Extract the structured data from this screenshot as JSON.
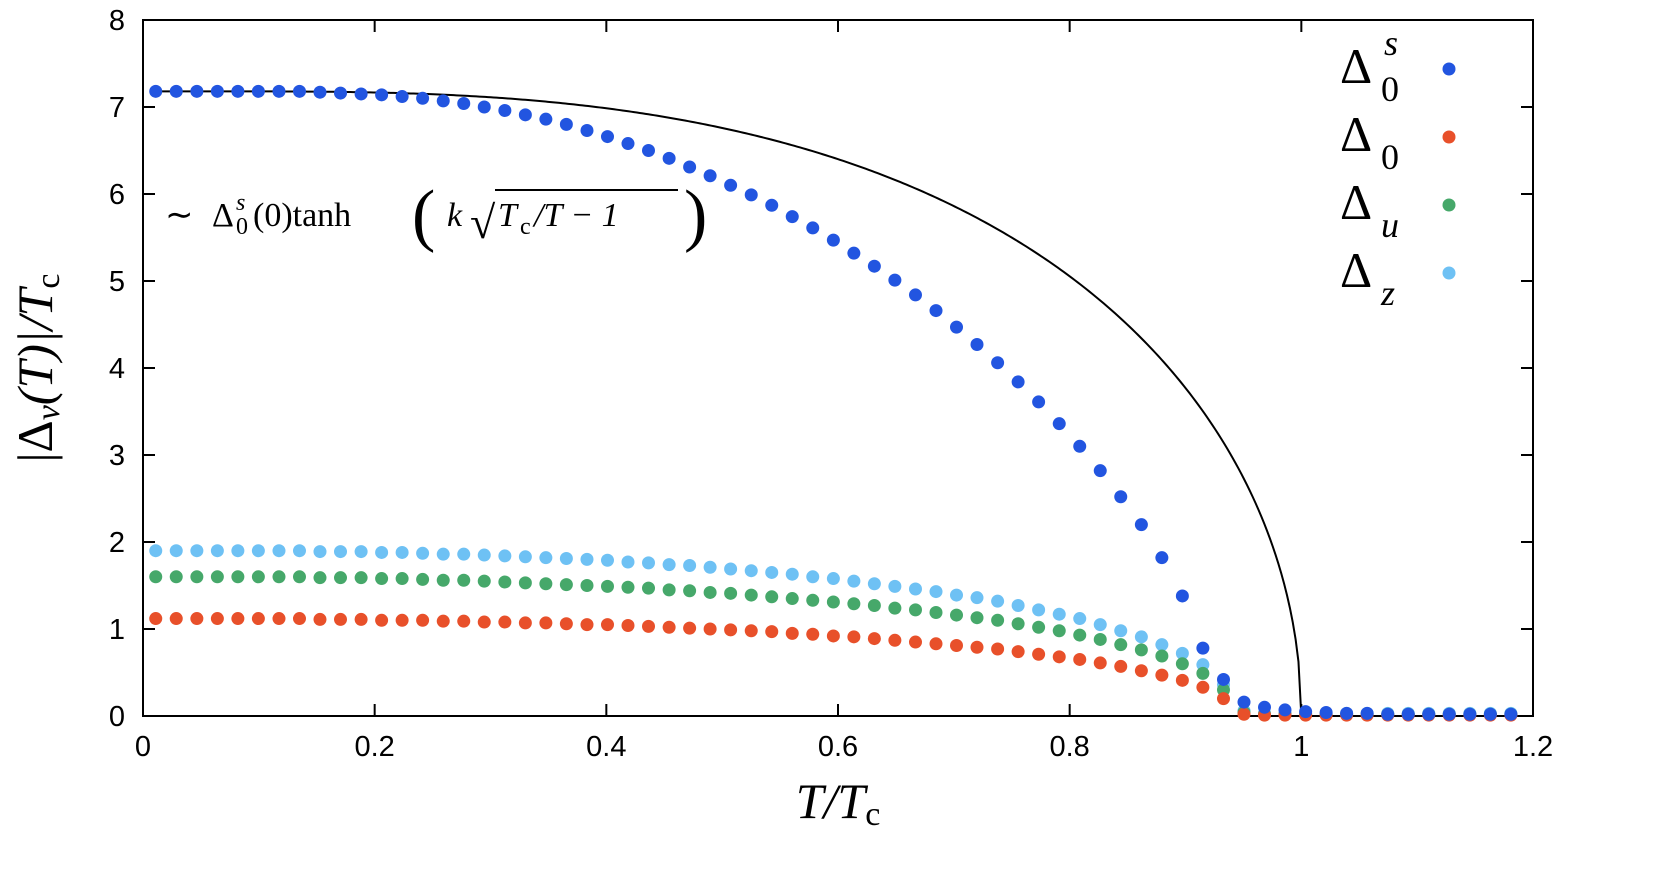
{
  "chart_data": {
    "type": "scatter",
    "title": "",
    "xlim": [
      0,
      1.2
    ],
    "ylim": [
      0,
      8
    ],
    "x_ticks": [
      "0",
      "0.2",
      "0.4",
      "0.6",
      "0.8",
      "1",
      "1.2"
    ],
    "y_ticks": [
      "0",
      "1",
      "2",
      "3",
      "4",
      "5",
      "6",
      "7",
      "8"
    ],
    "xlabel": {
      "base": "T/T",
      "sub": "c"
    },
    "ylabel": {
      "open": "|Δ",
      "sub": "ν",
      "mid": "(T)|/T",
      "sub2": "c"
    },
    "annotation": {
      "tilde": "∼",
      "delta": "Δ",
      "delta_sub": "0",
      "delta_sup": "s",
      "arg": "(0)tanh",
      "lparen": "(",
      "k": "k",
      "radical": "√",
      "tc": "T",
      "tc_sub": "c",
      "ratio": "/T − 1",
      "rparen": ")"
    },
    "fit": {
      "name": "fit",
      "delta0": 7.18,
      "k": 1.75,
      "color": "#000000"
    },
    "x": [
      0.011,
      0.0287,
      0.0465,
      0.0642,
      0.0819,
      0.0996,
      0.1174,
      0.1351,
      0.1528,
      0.1705,
      0.1883,
      0.206,
      0.2237,
      0.2414,
      0.2592,
      0.2769,
      0.2946,
      0.3124,
      0.3301,
      0.3478,
      0.3655,
      0.3833,
      0.401,
      0.4187,
      0.4364,
      0.4542,
      0.4719,
      0.4896,
      0.5073,
      0.5251,
      0.5428,
      0.5605,
      0.5782,
      0.596,
      0.6137,
      0.6314,
      0.6491,
      0.6669,
      0.6846,
      0.7023,
      0.72,
      0.7378,
      0.7555,
      0.7732,
      0.791,
      0.8087,
      0.8264,
      0.8441,
      0.8619,
      0.8796,
      0.8973,
      0.915,
      0.9328,
      0.9505,
      0.9682,
      0.9859,
      1.0037,
      1.0214,
      1.0391,
      1.0568,
      1.0746,
      1.0923,
      1.11,
      1.1277,
      1.1455,
      1.1632,
      1.1809
    ],
    "series": [
      {
        "name": "Δ0s",
        "label": {
          "base": "Δ",
          "sub": "0",
          "sup": "s"
        },
        "color": "#2255e0",
        "values": [
          7.18,
          7.18,
          7.18,
          7.18,
          7.18,
          7.18,
          7.18,
          7.18,
          7.17,
          7.16,
          7.15,
          7.14,
          7.12,
          7.1,
          7.07,
          7.04,
          7.0,
          6.96,
          6.91,
          6.86,
          6.8,
          6.73,
          6.66,
          6.58,
          6.5,
          6.41,
          6.31,
          6.21,
          6.1,
          5.99,
          5.87,
          5.74,
          5.61,
          5.47,
          5.32,
          5.17,
          5.01,
          4.84,
          4.66,
          4.47,
          4.27,
          4.06,
          3.84,
          3.61,
          3.36,
          3.1,
          2.82,
          2.52,
          2.2,
          1.82,
          1.38,
          0.78,
          0.42,
          0.16,
          0.1,
          0.07,
          0.05,
          0.04,
          0.03,
          0.03,
          0.02,
          0.02,
          0.02,
          0.02,
          0.02,
          0.02,
          0.02
        ]
      },
      {
        "name": "Δ0",
        "label": {
          "base": "Δ",
          "sub": "0",
          "sup": ""
        },
        "color": "#e8502a",
        "values": [
          1.12,
          1.12,
          1.12,
          1.12,
          1.12,
          1.12,
          1.12,
          1.12,
          1.11,
          1.11,
          1.11,
          1.1,
          1.1,
          1.1,
          1.09,
          1.09,
          1.08,
          1.08,
          1.07,
          1.07,
          1.06,
          1.05,
          1.05,
          1.04,
          1.03,
          1.02,
          1.01,
          1.0,
          0.99,
          0.98,
          0.97,
          0.95,
          0.94,
          0.92,
          0.91,
          0.89,
          0.87,
          0.85,
          0.83,
          0.81,
          0.79,
          0.77,
          0.74,
          0.71,
          0.68,
          0.65,
          0.61,
          0.57,
          0.52,
          0.47,
          0.41,
          0.33,
          0.2,
          0.02,
          0.01,
          0.01,
          0.01,
          0.01,
          0.01,
          0.01,
          0.01,
          0.01,
          0.01,
          0.01,
          0.01,
          0.01,
          0.01
        ]
      },
      {
        "name": "Δu",
        "label": {
          "base": "Δ",
          "sub": "u",
          "sup": ""
        },
        "color": "#46a86a",
        "values": [
          1.6,
          1.6,
          1.6,
          1.6,
          1.6,
          1.6,
          1.6,
          1.6,
          1.59,
          1.59,
          1.59,
          1.58,
          1.58,
          1.57,
          1.56,
          1.56,
          1.55,
          1.54,
          1.53,
          1.52,
          1.51,
          1.5,
          1.49,
          1.48,
          1.47,
          1.45,
          1.44,
          1.42,
          1.41,
          1.39,
          1.37,
          1.35,
          1.33,
          1.31,
          1.29,
          1.27,
          1.24,
          1.22,
          1.19,
          1.16,
          1.13,
          1.1,
          1.06,
          1.02,
          0.98,
          0.93,
          0.88,
          0.82,
          0.76,
          0.69,
          0.6,
          0.49,
          0.3,
          0.04,
          0.02,
          0.02,
          0.02,
          0.02,
          0.02,
          0.02,
          0.02,
          0.02,
          0.02,
          0.02,
          0.02,
          0.02,
          0.02
        ]
      },
      {
        "name": "Δz",
        "label": {
          "base": "Δ",
          "sub": "z",
          "sup": ""
        },
        "color": "#6ec1f4",
        "values": [
          1.9,
          1.9,
          1.9,
          1.9,
          1.9,
          1.9,
          1.9,
          1.9,
          1.89,
          1.89,
          1.89,
          1.88,
          1.88,
          1.87,
          1.86,
          1.86,
          1.85,
          1.84,
          1.83,
          1.82,
          1.81,
          1.8,
          1.79,
          1.77,
          1.76,
          1.74,
          1.73,
          1.71,
          1.69,
          1.67,
          1.65,
          1.63,
          1.6,
          1.58,
          1.55,
          1.52,
          1.49,
          1.46,
          1.43,
          1.39,
          1.36,
          1.32,
          1.27,
          1.22,
          1.17,
          1.12,
          1.05,
          0.98,
          0.91,
          0.82,
          0.72,
          0.59,
          0.36,
          0.06,
          0.03,
          0.03,
          0.03,
          0.03,
          0.03,
          0.03,
          0.03,
          0.03,
          0.03,
          0.03,
          0.03,
          0.03,
          0.03
        ]
      }
    ]
  }
}
